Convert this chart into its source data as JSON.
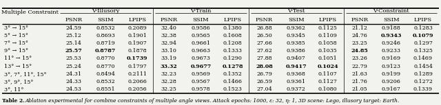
{
  "title": "Table 2.",
  "caption": "Ablation experimental for combine constraints of multiple angle views. Attack epochs: 1000, ε: 32, η: 1, 3D scene: Lego, illusory target: Earth.",
  "col_groups": [
    "V-Illusory",
    "V-Train",
    "V-Test",
    "V-Constraint"
  ],
  "sub_cols": [
    "PSNR",
    "SSIM",
    "LPIPS"
  ],
  "first_col": "Multiple Constraint",
  "rows": [
    {
      "label": "3° → 15°",
      "data": [
        24.59,
        0.8532,
        0.2089,
        32.4,
        0.9586,
        0.138,
        26.88,
        0.9362,
        0.1125,
        21.12,
        0.9188,
        0.1283
      ]
    },
    {
      "label": "5° → 15°",
      "data": [
        25.12,
        0.8693,
        0.1901,
        32.38,
        0.9565,
        0.1608,
        26.5,
        0.9345,
        0.1109,
        24.76,
        0.9343,
        0.1079
      ]
    },
    {
      "label": "7° → 15°",
      "data": [
        25.14,
        0.8719,
        0.1907,
        32.94,
        0.9661,
        0.1208,
        27.66,
        0.9385,
        0.1058,
        23.25,
        0.9246,
        0.1297
      ]
    },
    {
      "label": "9° → 15°",
      "data": [
        25.57,
        0.8787,
        0.1878,
        33.1,
        0.9663,
        0.1333,
        27.62,
        0.9386,
        0.1035,
        24.85,
        0.9233,
        0.1325
      ]
    },
    {
      "label": "11° → 15°",
      "data": [
        25.53,
        0.877,
        0.1739,
        33.19,
        0.9673,
        0.129,
        27.88,
        0.9407,
        0.1051,
        23.26,
        0.9169,
        0.1469
      ]
    },
    {
      "label": "13° → 15°",
      "data": [
        25.24,
        0.877,
        0.1797,
        33.32,
        0.9677,
        0.1278,
        28.08,
        0.9417,
        0.1024,
        22.79,
        0.9123,
        0.1454
      ]
    },
    {
      "label": "3°, 7°, 11°, 15°",
      "data": [
        24.31,
        0.8494,
        0.2111,
        32.23,
        0.9569,
        0.1352,
        26.79,
        0.9368,
        0.1107,
        21.63,
        0.9199,
        0.1289
      ]
    },
    {
      "label": "3°, 9°, 15°",
      "data": [
        24.33,
        0.8532,
        0.2066,
        32.28,
        0.9567,
        0.1466,
        26.59,
        0.9361,
        0.1127,
        21.76,
        0.9206,
        0.1272
      ]
    },
    {
      "label": "3°, 11°",
      "data": [
        24.53,
        0.8551,
        0.2056,
        32.25,
        0.9578,
        0.1523,
        27.04,
        0.9372,
        0.108,
        21.05,
        0.9167,
        0.1339
      ]
    }
  ],
  "bold_map": {
    "1": [
      10,
      11
    ],
    "3": [
      0,
      1,
      9
    ],
    "4": [
      2
    ],
    "5": [
      3,
      4,
      5,
      6,
      7,
      8
    ]
  },
  "bg_color": "#f2f2ee",
  "figsize": [
    6.4,
    1.53
  ],
  "dpi": 100
}
